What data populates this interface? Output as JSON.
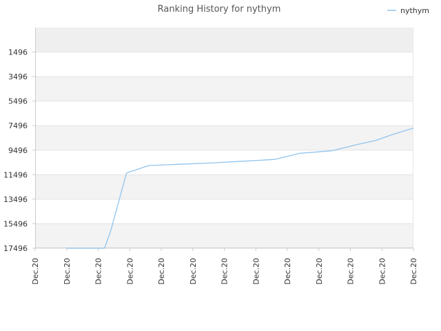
{
  "chart_data": {
    "type": "line",
    "title": "Ranking History for nythym",
    "xlabel": "",
    "ylabel": "",
    "y_inverted": true,
    "ylim": [
      17496,
      -504
    ],
    "yticks": [
      1496,
      3496,
      5496,
      7496,
      9496,
      11496,
      13496,
      15496,
      17496
    ],
    "xticks": [
      "Dec.20",
      "Dec.20",
      "Dec.20",
      "Dec.20",
      "Dec.20",
      "Dec.20",
      "Dec.20",
      "Dec.20",
      "Dec.20",
      "Dec.20",
      "Dec.20",
      "Dec.20",
      "Dec.20"
    ],
    "grid": true,
    "legend_position": "top-right",
    "series": [
      {
        "name": "nythym",
        "color": "#90c4ee",
        "x": [
          1,
          2.2,
          2.4,
          2.9,
          3.6,
          4.5,
          5.5,
          6.6,
          7.6,
          8.4,
          9.4,
          10.2,
          10.8,
          11.3,
          12
        ],
        "values": [
          17496,
          17496,
          16050,
          11350,
          10750,
          10650,
          10550,
          10400,
          10250,
          9750,
          9550,
          9050,
          8700,
          8250,
          7700
        ]
      }
    ]
  }
}
